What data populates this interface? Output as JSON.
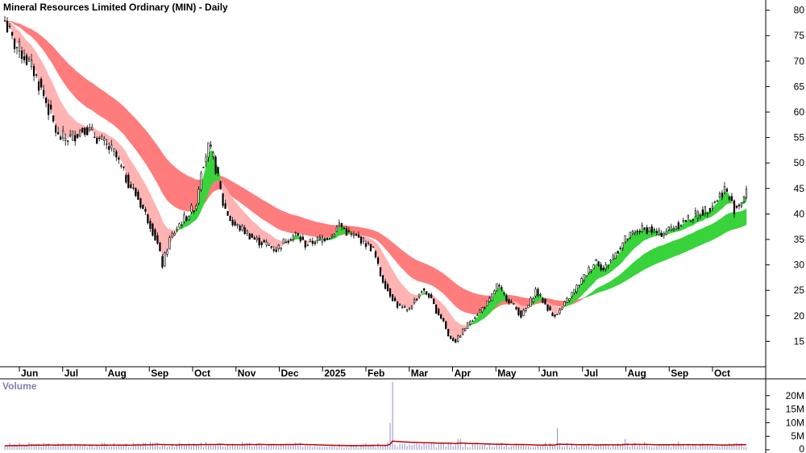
{
  "chart_data": {
    "type": "candlestick",
    "title": "Mineral Resources Limited Ordinary (MIN) - Daily",
    "price_axis": {
      "ylim": [
        10,
        82
      ],
      "ticks": [
        15,
        20,
        25,
        30,
        35,
        40,
        45,
        50,
        55,
        60,
        65,
        70,
        75,
        80
      ]
    },
    "x_axis_labels": [
      "Jun",
      "Jul",
      "Aug",
      "Sep",
      "Oct",
      "Nov",
      "Dec",
      "2025",
      "Feb",
      "Mar",
      "Apr",
      "May",
      "Jun",
      "Jul",
      "Aug",
      "Sep",
      "Oct"
    ],
    "price_close_anchors": [
      [
        0,
        78
      ],
      [
        3,
        74
      ],
      [
        8,
        71
      ],
      [
        12,
        68
      ],
      [
        17,
        62
      ],
      [
        22,
        55
      ],
      [
        27,
        55
      ],
      [
        33,
        57
      ],
      [
        38,
        55
      ],
      [
        45,
        52
      ],
      [
        50,
        47
      ],
      [
        55,
        43
      ],
      [
        60,
        38
      ],
      [
        63,
        34
      ],
      [
        65,
        30
      ],
      [
        68,
        35
      ],
      [
        72,
        38
      ],
      [
        76,
        40
      ],
      [
        79,
        42
      ],
      [
        81,
        49
      ],
      [
        84,
        53
      ],
      [
        86,
        51
      ],
      [
        88,
        47
      ],
      [
        90,
        42
      ],
      [
        94,
        38
      ],
      [
        98,
        37
      ],
      [
        103,
        35
      ],
      [
        108,
        34
      ],
      [
        112,
        33
      ],
      [
        116,
        35
      ],
      [
        120,
        36
      ],
      [
        124,
        34
      ],
      [
        130,
        35
      ],
      [
        135,
        36
      ],
      [
        138,
        38
      ],
      [
        142,
        36
      ],
      [
        147,
        35
      ],
      [
        152,
        33
      ],
      [
        155,
        28
      ],
      [
        158,
        25
      ],
      [
        162,
        22
      ],
      [
        166,
        21
      ],
      [
        169,
        23
      ],
      [
        172,
        25
      ],
      [
        175,
        24
      ],
      [
        178,
        21
      ],
      [
        181,
        19
      ],
      [
        183,
        16
      ],
      [
        186,
        15
      ],
      [
        189,
        17
      ],
      [
        192,
        19
      ],
      [
        196,
        21
      ],
      [
        200,
        23
      ],
      [
        203,
        26
      ],
      [
        206,
        24
      ],
      [
        210,
        22
      ],
      [
        213,
        20
      ],
      [
        216,
        22
      ],
      [
        219,
        25
      ],
      [
        222,
        23
      ],
      [
        226,
        20
      ],
      [
        229,
        21
      ],
      [
        232,
        23
      ],
      [
        235,
        25
      ],
      [
        238,
        27
      ],
      [
        241,
        29
      ],
      [
        244,
        31
      ],
      [
        247,
        29
      ],
      [
        250,
        31
      ],
      [
        253,
        33
      ],
      [
        256,
        35
      ],
      [
        259,
        36
      ],
      [
        262,
        37
      ],
      [
        266,
        37
      ],
      [
        270,
        36
      ],
      [
        274,
        37
      ],
      [
        278,
        38
      ],
      [
        282,
        39
      ],
      [
        286,
        40
      ],
      [
        290,
        41
      ],
      [
        294,
        43
      ],
      [
        297,
        45
      ],
      [
        299,
        43
      ],
      [
        301,
        41
      ],
      [
        303,
        42
      ],
      [
        306,
        44
      ]
    ],
    "ma_ribbons": [
      {
        "name": "short-term",
        "color_up": "#39d33b",
        "color_down": "#ffb3b3",
        "color_neutral": "#ff7832"
      },
      {
        "name": "long-term",
        "color_up": "#39d33b",
        "color_down": "#ff7c7c",
        "color_neutral": "#ff7832"
      }
    ],
    "volume": {
      "label": "Volume",
      "ticks": [
        "0",
        "5M",
        "10M",
        "15M",
        "20M"
      ],
      "tick_values": [
        0,
        5,
        10,
        15,
        20
      ],
      "ylim": [
        0,
        25
      ],
      "spikes_millions": [
        [
          160,
          25
        ],
        [
          159,
          10
        ],
        [
          228,
          8
        ],
        [
          60,
          3
        ],
        [
          83,
          3
        ],
        [
          98,
          3
        ],
        [
          187,
          4
        ],
        [
          188,
          4
        ],
        [
          256,
          4
        ],
        [
          264,
          3
        ],
        [
          278,
          3
        ]
      ],
      "base_millions": 1.8,
      "avg_line_color": "#c00000",
      "bar_color": "#8f8fcf"
    }
  }
}
